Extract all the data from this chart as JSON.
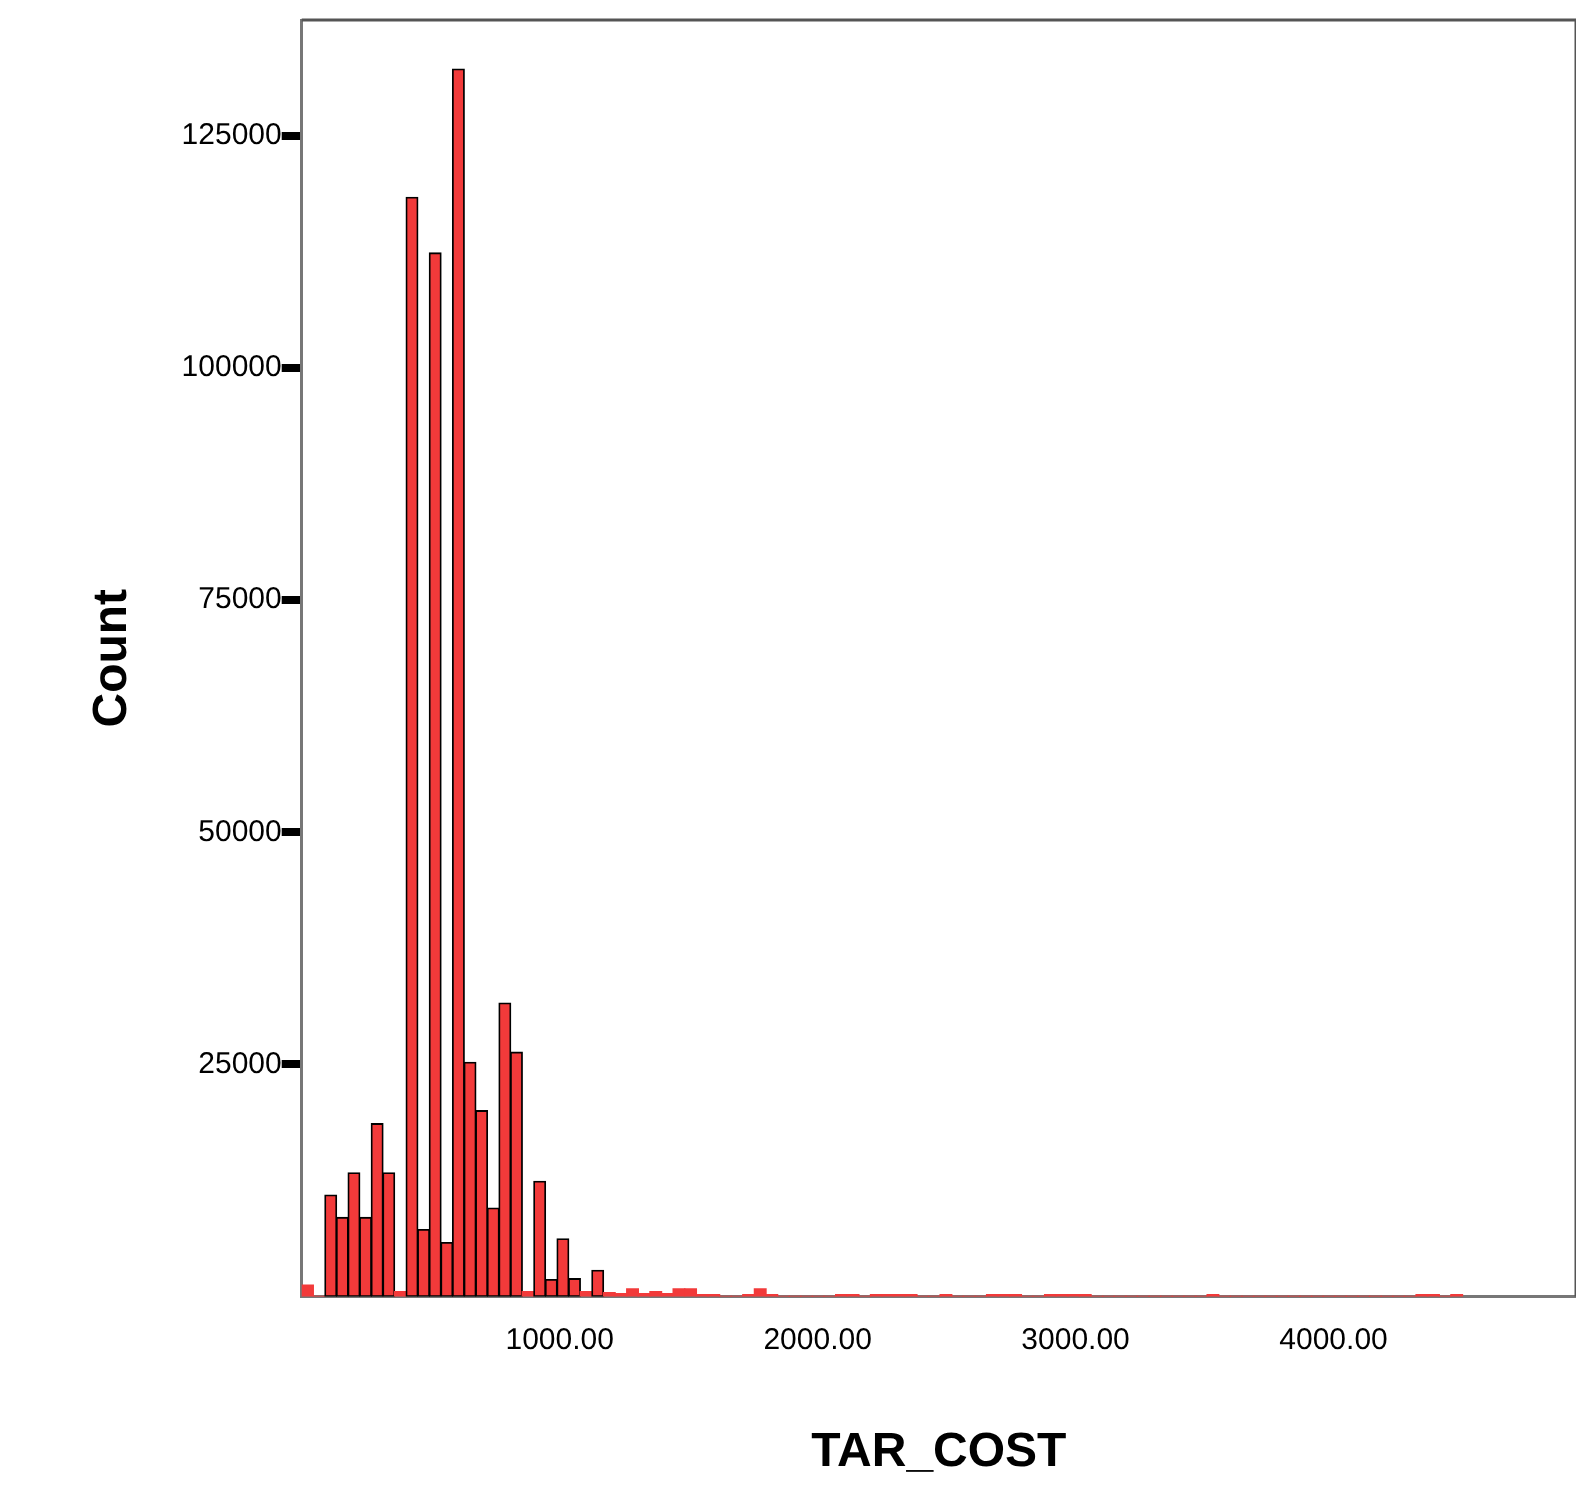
{
  "chart_data": {
    "type": "histogram",
    "xlabel": "TAR_COST",
    "ylabel": "Count",
    "color": "#f23a3a",
    "bins": [
      0,
      45,
      90,
      135,
      180,
      225,
      270,
      315,
      360,
      405,
      450,
      495,
      540,
      585,
      630,
      675,
      720,
      765,
      810,
      855,
      900,
      945,
      990,
      1035,
      1080,
      1125,
      1170,
      1215,
      1260,
      1305,
      1350,
      1395,
      1440,
      1485,
      1530,
      1575,
      1620,
      1665,
      1710,
      1755,
      1800,
      1845,
      1890,
      1935,
      1980,
      2025,
      2070,
      2115,
      2160,
      2205,
      2250,
      2295,
      2340,
      2385,
      2430,
      2475,
      2520,
      2565,
      2610,
      2655,
      2700,
      2745,
      2790,
      2835,
      2880,
      2925,
      2970,
      3015,
      3060,
      3105,
      3150,
      3195,
      3240,
      3285,
      3330,
      3375,
      3420,
      3465,
      3510,
      3555,
      3600,
      3645,
      3690,
      3735,
      3780,
      3825,
      3870,
      3915,
      3960,
      4005,
      4050,
      4095,
      4140,
      4185,
      4230,
      4275,
      4320,
      4365,
      4410,
      4455,
      4500
    ],
    "values": [
      1200,
      0,
      10900,
      8500,
      13300,
      8500,
      18600,
      13300,
      500,
      118400,
      7200,
      112400,
      5800,
      132200,
      25200,
      20000,
      9500,
      31600,
      26300,
      500,
      12400,
      1800,
      6200,
      1900,
      500,
      2800,
      400,
      300,
      800,
      300,
      500,
      300,
      800,
      800,
      200,
      200,
      0,
      0,
      200,
      800,
      200,
      0,
      0,
      0,
      0,
      0,
      200,
      200,
      0,
      200,
      200,
      200,
      200,
      0,
      0,
      200,
      0,
      0,
      0,
      200,
      200,
      200,
      0,
      0,
      200,
      200,
      200,
      200,
      0,
      0,
      0,
      0,
      0,
      0,
      0,
      0,
      0,
      0,
      200,
      0,
      0,
      0,
      0,
      0,
      0,
      0,
      0,
      0,
      0,
      0,
      0,
      0,
      0,
      0,
      0,
      0,
      200,
      200,
      0,
      200
    ],
    "xlim": [
      0,
      4940
    ],
    "ylim": [
      0,
      137500
    ],
    "xticks": [
      {
        "value": 1000,
        "label": "1000.00"
      },
      {
        "value": 2000,
        "label": "2000.00"
      },
      {
        "value": 3000,
        "label": "3000.00"
      },
      {
        "value": 4000,
        "label": "4000.00"
      }
    ],
    "yticks": [
      25000,
      50000,
      75000,
      100000,
      125000
    ],
    "grid": false,
    "legend": false
  }
}
